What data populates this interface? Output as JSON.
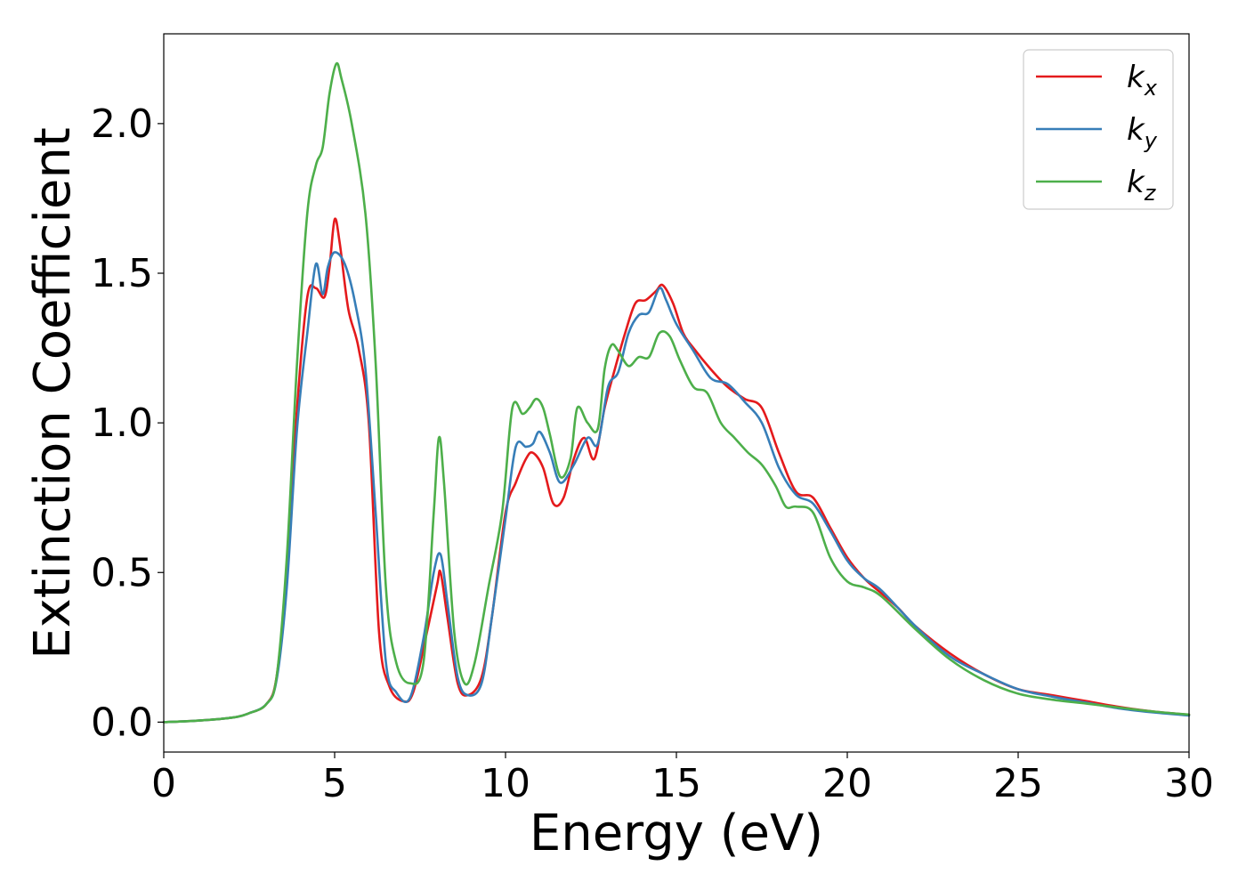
{
  "chart_data": {
    "type": "line",
    "xlabel": "Energy (eV)",
    "ylabel": "Extinction Coefficient",
    "xlim": [
      0,
      30
    ],
    "ylim": [
      -0.1,
      2.3
    ],
    "xticks": [
      0,
      5,
      10,
      15,
      20,
      25,
      30
    ],
    "xtick_labels": [
      "0",
      "5",
      "10",
      "15",
      "20",
      "25",
      "30"
    ],
    "yticks": [
      0.0,
      0.5,
      1.0,
      1.5,
      2.0
    ],
    "ytick_labels": [
      "0.0",
      "0.5",
      "1.0",
      "1.5",
      "2.0"
    ],
    "grid": false,
    "legend_position": "top-right",
    "series": [
      {
        "name": "kx",
        "label_main": "k",
        "label_sub": "x",
        "color": "#e41a1c",
        "x": [
          0,
          1,
          2,
          2.5,
          3,
          3.3,
          3.6,
          3.9,
          4.2,
          4.45,
          4.7,
          4.85,
          5.0,
          5.15,
          5.4,
          5.7,
          6.0,
          6.3,
          6.6,
          7.0,
          7.3,
          7.7,
          8.0,
          8.1,
          8.3,
          8.6,
          8.9,
          9.3,
          9.6,
          10.0,
          10.3,
          10.6,
          10.8,
          11.1,
          11.4,
          11.7,
          12.0,
          12.3,
          12.6,
          12.9,
          13.2,
          13.5,
          13.8,
          14.1,
          14.4,
          14.6,
          14.9,
          15.2,
          15.5,
          16.0,
          16.5,
          17.0,
          17.5,
          18.0,
          18.5,
          19.0,
          19.5,
          20.0,
          20.5,
          21.0,
          21.5,
          22.0,
          23.0,
          24.0,
          25.0,
          26.0,
          27.0,
          28.0,
          29.0,
          30.0
        ],
        "y": [
          0.0,
          0.005,
          0.015,
          0.03,
          0.06,
          0.15,
          0.5,
          1.05,
          1.42,
          1.45,
          1.42,
          1.52,
          1.68,
          1.6,
          1.38,
          1.25,
          1.0,
          0.3,
          0.12,
          0.07,
          0.1,
          0.3,
          0.46,
          0.5,
          0.35,
          0.13,
          0.09,
          0.15,
          0.35,
          0.7,
          0.8,
          0.88,
          0.9,
          0.85,
          0.73,
          0.75,
          0.88,
          0.95,
          0.88,
          1.05,
          1.18,
          1.3,
          1.4,
          1.41,
          1.44,
          1.46,
          1.4,
          1.3,
          1.25,
          1.18,
          1.12,
          1.08,
          1.05,
          0.9,
          0.77,
          0.75,
          0.65,
          0.55,
          0.48,
          0.43,
          0.38,
          0.32,
          0.23,
          0.16,
          0.11,
          0.09,
          0.07,
          0.05,
          0.035,
          0.025
        ]
      },
      {
        "name": "ky",
        "label_main": "k",
        "label_sub": "y",
        "color": "#377eb8",
        "x": [
          0,
          1,
          2,
          2.5,
          3,
          3.3,
          3.6,
          3.9,
          4.2,
          4.45,
          4.65,
          4.8,
          5.0,
          5.3,
          5.6,
          5.9,
          6.2,
          6.5,
          6.8,
          7.2,
          7.6,
          7.9,
          8.1,
          8.3,
          8.6,
          8.9,
          9.3,
          9.6,
          10.0,
          10.3,
          10.6,
          10.8,
          11.0,
          11.3,
          11.6,
          12.0,
          12.4,
          12.7,
          13.0,
          13.3,
          13.6,
          13.9,
          14.2,
          14.5,
          14.7,
          15.0,
          15.5,
          16.0,
          16.5,
          17.0,
          17.5,
          18.0,
          18.5,
          19.0,
          19.5,
          20.0,
          20.5,
          21.0,
          22.0,
          23.0,
          24.0,
          25.0,
          26.0,
          27.0,
          28.0,
          29.0,
          30.0
        ],
        "y": [
          0.0,
          0.005,
          0.015,
          0.03,
          0.06,
          0.14,
          0.45,
          0.98,
          1.3,
          1.53,
          1.43,
          1.52,
          1.57,
          1.53,
          1.4,
          1.18,
          0.7,
          0.2,
          0.1,
          0.08,
          0.28,
          0.5,
          0.56,
          0.4,
          0.15,
          0.09,
          0.13,
          0.35,
          0.68,
          0.92,
          0.92,
          0.93,
          0.97,
          0.9,
          0.8,
          0.86,
          0.95,
          0.93,
          1.12,
          1.17,
          1.3,
          1.36,
          1.37,
          1.45,
          1.41,
          1.33,
          1.24,
          1.15,
          1.13,
          1.07,
          1.0,
          0.85,
          0.76,
          0.73,
          0.64,
          0.54,
          0.48,
          0.44,
          0.32,
          0.22,
          0.16,
          0.11,
          0.085,
          0.065,
          0.045,
          0.032,
          0.022
        ]
      },
      {
        "name": "kz",
        "label_main": "k",
        "label_sub": "z",
        "color": "#4daf4a",
        "x": [
          0,
          1,
          2,
          2.5,
          3,
          3.3,
          3.6,
          3.9,
          4.2,
          4.45,
          4.65,
          4.85,
          5.05,
          5.2,
          5.5,
          5.9,
          6.2,
          6.5,
          6.8,
          7.2,
          7.6,
          7.9,
          8.05,
          8.2,
          8.5,
          8.8,
          9.1,
          9.5,
          9.9,
          10.2,
          10.5,
          10.7,
          10.9,
          11.1,
          11.3,
          11.6,
          11.9,
          12.1,
          12.4,
          12.7,
          12.9,
          13.1,
          13.3,
          13.6,
          13.9,
          14.2,
          14.5,
          14.8,
          15.1,
          15.5,
          15.9,
          16.3,
          16.7,
          17.1,
          17.5,
          17.9,
          18.2,
          18.5,
          19.0,
          19.5,
          20.0,
          20.5,
          21.0,
          22.0,
          23.0,
          24.0,
          25.0,
          26.0,
          27.0,
          28.0,
          29.0,
          30.0
        ],
        "y": [
          0.0,
          0.005,
          0.015,
          0.03,
          0.06,
          0.15,
          0.55,
          1.2,
          1.7,
          1.86,
          1.92,
          2.1,
          2.2,
          2.15,
          2.0,
          1.7,
          1.2,
          0.45,
          0.2,
          0.13,
          0.2,
          0.7,
          0.95,
          0.8,
          0.3,
          0.13,
          0.2,
          0.45,
          0.7,
          1.05,
          1.03,
          1.05,
          1.08,
          1.05,
          0.96,
          0.82,
          0.88,
          1.05,
          1.0,
          0.98,
          1.18,
          1.26,
          1.24,
          1.19,
          1.22,
          1.22,
          1.3,
          1.29,
          1.21,
          1.12,
          1.1,
          1.0,
          0.95,
          0.9,
          0.86,
          0.79,
          0.72,
          0.72,
          0.7,
          0.55,
          0.47,
          0.45,
          0.42,
          0.31,
          0.21,
          0.14,
          0.095,
          0.075,
          0.062,
          0.048,
          0.035,
          0.025
        ]
      }
    ]
  }
}
